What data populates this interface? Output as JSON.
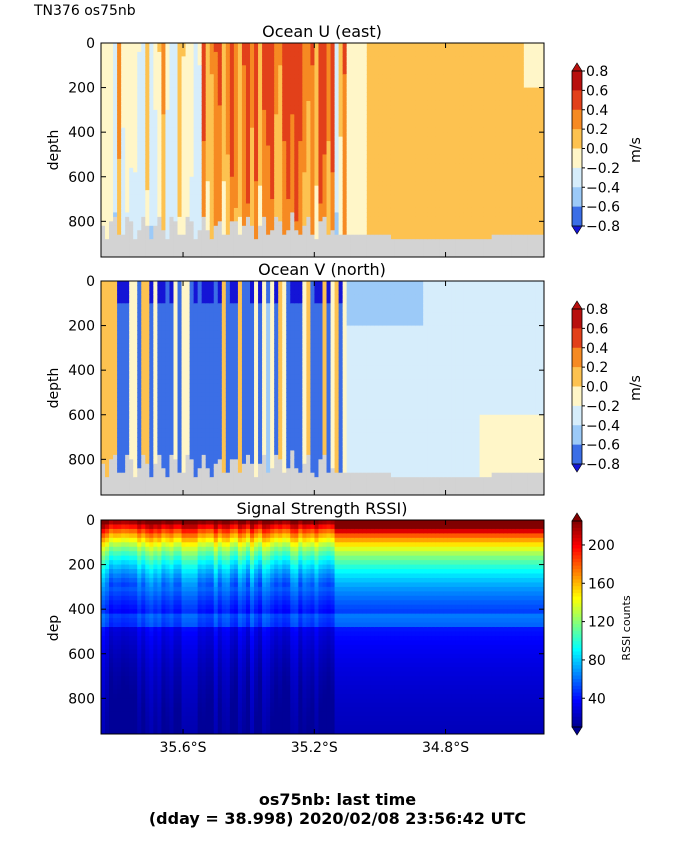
{
  "header": {
    "title": "TN376 os75nb"
  },
  "footer": {
    "line1": "os75nb: last time",
    "line2": "(dday = 38.998) 2020/02/08 23:56:42 UTC"
  },
  "colors": {
    "land": "#d3d3d3",
    "diverging_cmap": [
      "#1414d6",
      "#3b6ee6",
      "#9ccaf8",
      "#d6edfb",
      "#fff6c8",
      "#fdc250",
      "#f68a22",
      "#e2401a",
      "#b8100e"
    ],
    "jet_cmap": [
      "#00008f",
      "#0000ff",
      "#0080ff",
      "#00ffff",
      "#80ff80",
      "#ffff00",
      "#ff8000",
      "#ff0000",
      "#800000"
    ]
  },
  "chart_data": [
    {
      "type": "heatmap",
      "title": "Ocean U (east)",
      "xlabel": "",
      "ylabel": "depth",
      "yticks": [
        "0",
        "200",
        "400",
        "600",
        "800"
      ],
      "ylim": [
        960,
        0
      ],
      "xlim": [
        35.85,
        34.5
      ],
      "xticks": [
        35.6,
        35.2,
        34.8
      ],
      "xtick_labels": [
        "",
        "",
        ""
      ],
      "colorbar": {
        "label": "m/s",
        "ticks": [
          "0.8",
          "0.6",
          "0.4",
          "0.2",
          "0.0",
          "−0.2",
          "−0.4",
          "−0.6",
          "−0.8"
        ],
        "vmin": -0.8,
        "vmax": 0.8
      },
      "summary": {
        "west_of_35.05S": "strong positive eastward flow 0.2 to 0.8 in vertical bands",
        "east_of_35.05S": "uniform 0.2 to 0.4",
        "bottom_depth": [
          800,
          900
        ]
      }
    },
    {
      "type": "heatmap",
      "title": "Ocean V (north)",
      "xlabel": "",
      "ylabel": "depth",
      "yticks": [
        "0",
        "200",
        "400",
        "600",
        "800"
      ],
      "ylim": [
        960,
        0
      ],
      "xlim": [
        35.85,
        34.5
      ],
      "xticks": [
        35.6,
        35.2,
        34.8
      ],
      "xtick_labels": [
        "",
        "",
        ""
      ],
      "colorbar": {
        "label": "m/s",
        "ticks": [
          "0.8",
          "0.6",
          "0.4",
          "0.2",
          "0.0",
          "−0.2",
          "−0.4",
          "−0.6",
          "−0.8"
        ],
        "vmin": -0.8,
        "vmax": 0.8
      },
      "summary": {
        "west_of_35.1S": "strong negative (southward) bands to −0.8",
        "east_of_35.1S": "weak −0.2 to 0.0"
      }
    },
    {
      "type": "heatmap",
      "title": "Signal Strength RSSI)",
      "xlabel": "",
      "ylabel": "dep",
      "yticks": [
        "0",
        "200",
        "400",
        "600",
        "800"
      ],
      "ylim": [
        960,
        0
      ],
      "xlim": [
        35.85,
        34.5
      ],
      "xticks": [
        35.6,
        35.2,
        34.8
      ],
      "xtick_labels": [
        "35.6°S",
        "35.2°S",
        "34.8°S"
      ],
      "colorbar": {
        "label": "RSSI counts",
        "ticks": [
          "200",
          "160",
          "120",
          "80",
          "40"
        ],
        "vmin": 10,
        "vmax": 225
      },
      "summary": {
        "near_surface": 200,
        "depth_200": 100,
        "depth_450": 70,
        "deep": 30
      }
    }
  ]
}
